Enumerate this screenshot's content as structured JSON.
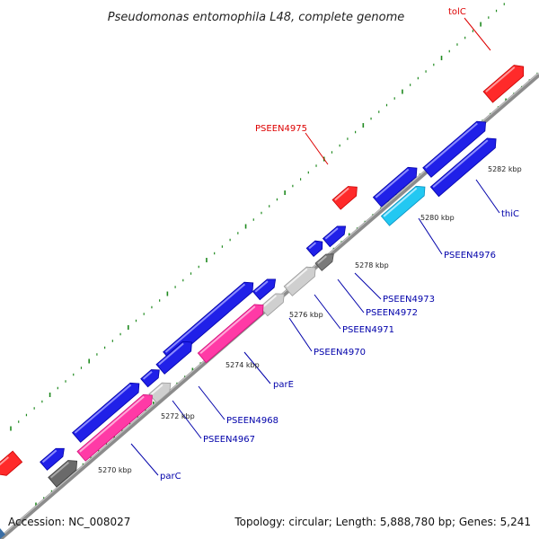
{
  "title": "Pseudomonas entomophila L48, complete genome",
  "footer": {
    "accession": "Accession: NC_008027",
    "topology": "Topology: circular; Length: 5,888,780 bp; Genes: 5,241"
  },
  "colors": {
    "backbone": "#8c8c8c",
    "tick": "#1f8a1f",
    "label_red": "#dd0000",
    "label_blue": "#0000aa"
  },
  "kbp_labels": [
    "5270 kbp",
    "5272 kbp",
    "5274 kbp",
    "5276 kbp",
    "5278 kbp",
    "5280 kbp",
    "5282 kbp"
  ],
  "gene_labels": [
    {
      "text": "tolC",
      "color": "red"
    },
    {
      "text": "PSEEN4975",
      "color": "red"
    },
    {
      "text": "PSEEN4976",
      "color": "blue"
    },
    {
      "text": "thiC",
      "color": "blue"
    },
    {
      "text": "PSEEN4973",
      "color": "blue"
    },
    {
      "text": "PSEEN4972",
      "color": "blue"
    },
    {
      "text": "PSEEN4971",
      "color": "blue"
    },
    {
      "text": "PSEEN4970",
      "color": "blue"
    },
    {
      "text": "parE",
      "color": "blue"
    },
    {
      "text": "PSEEN4968",
      "color": "blue"
    },
    {
      "text": "PSEEN4967",
      "color": "blue"
    },
    {
      "text": "parC",
      "color": "blue"
    }
  ],
  "features": [
    {
      "color": "red"
    },
    {
      "color": "red"
    },
    {
      "color": "red"
    },
    {
      "color": "blue"
    },
    {
      "color": "blue"
    },
    {
      "color": "blue"
    },
    {
      "color": "blue"
    },
    {
      "color": "blue"
    },
    {
      "color": "blue"
    },
    {
      "color": "blue"
    },
    {
      "color": "blue"
    },
    {
      "color": "blue"
    },
    {
      "color": "blue"
    },
    {
      "color": "blue"
    },
    {
      "color": "cyan"
    },
    {
      "color": "gray"
    },
    {
      "color": "lightgray"
    },
    {
      "color": "lightgray"
    },
    {
      "color": "pink"
    },
    {
      "color": "lightgray"
    },
    {
      "color": "pink"
    },
    {
      "color": "darkgray"
    }
  ]
}
